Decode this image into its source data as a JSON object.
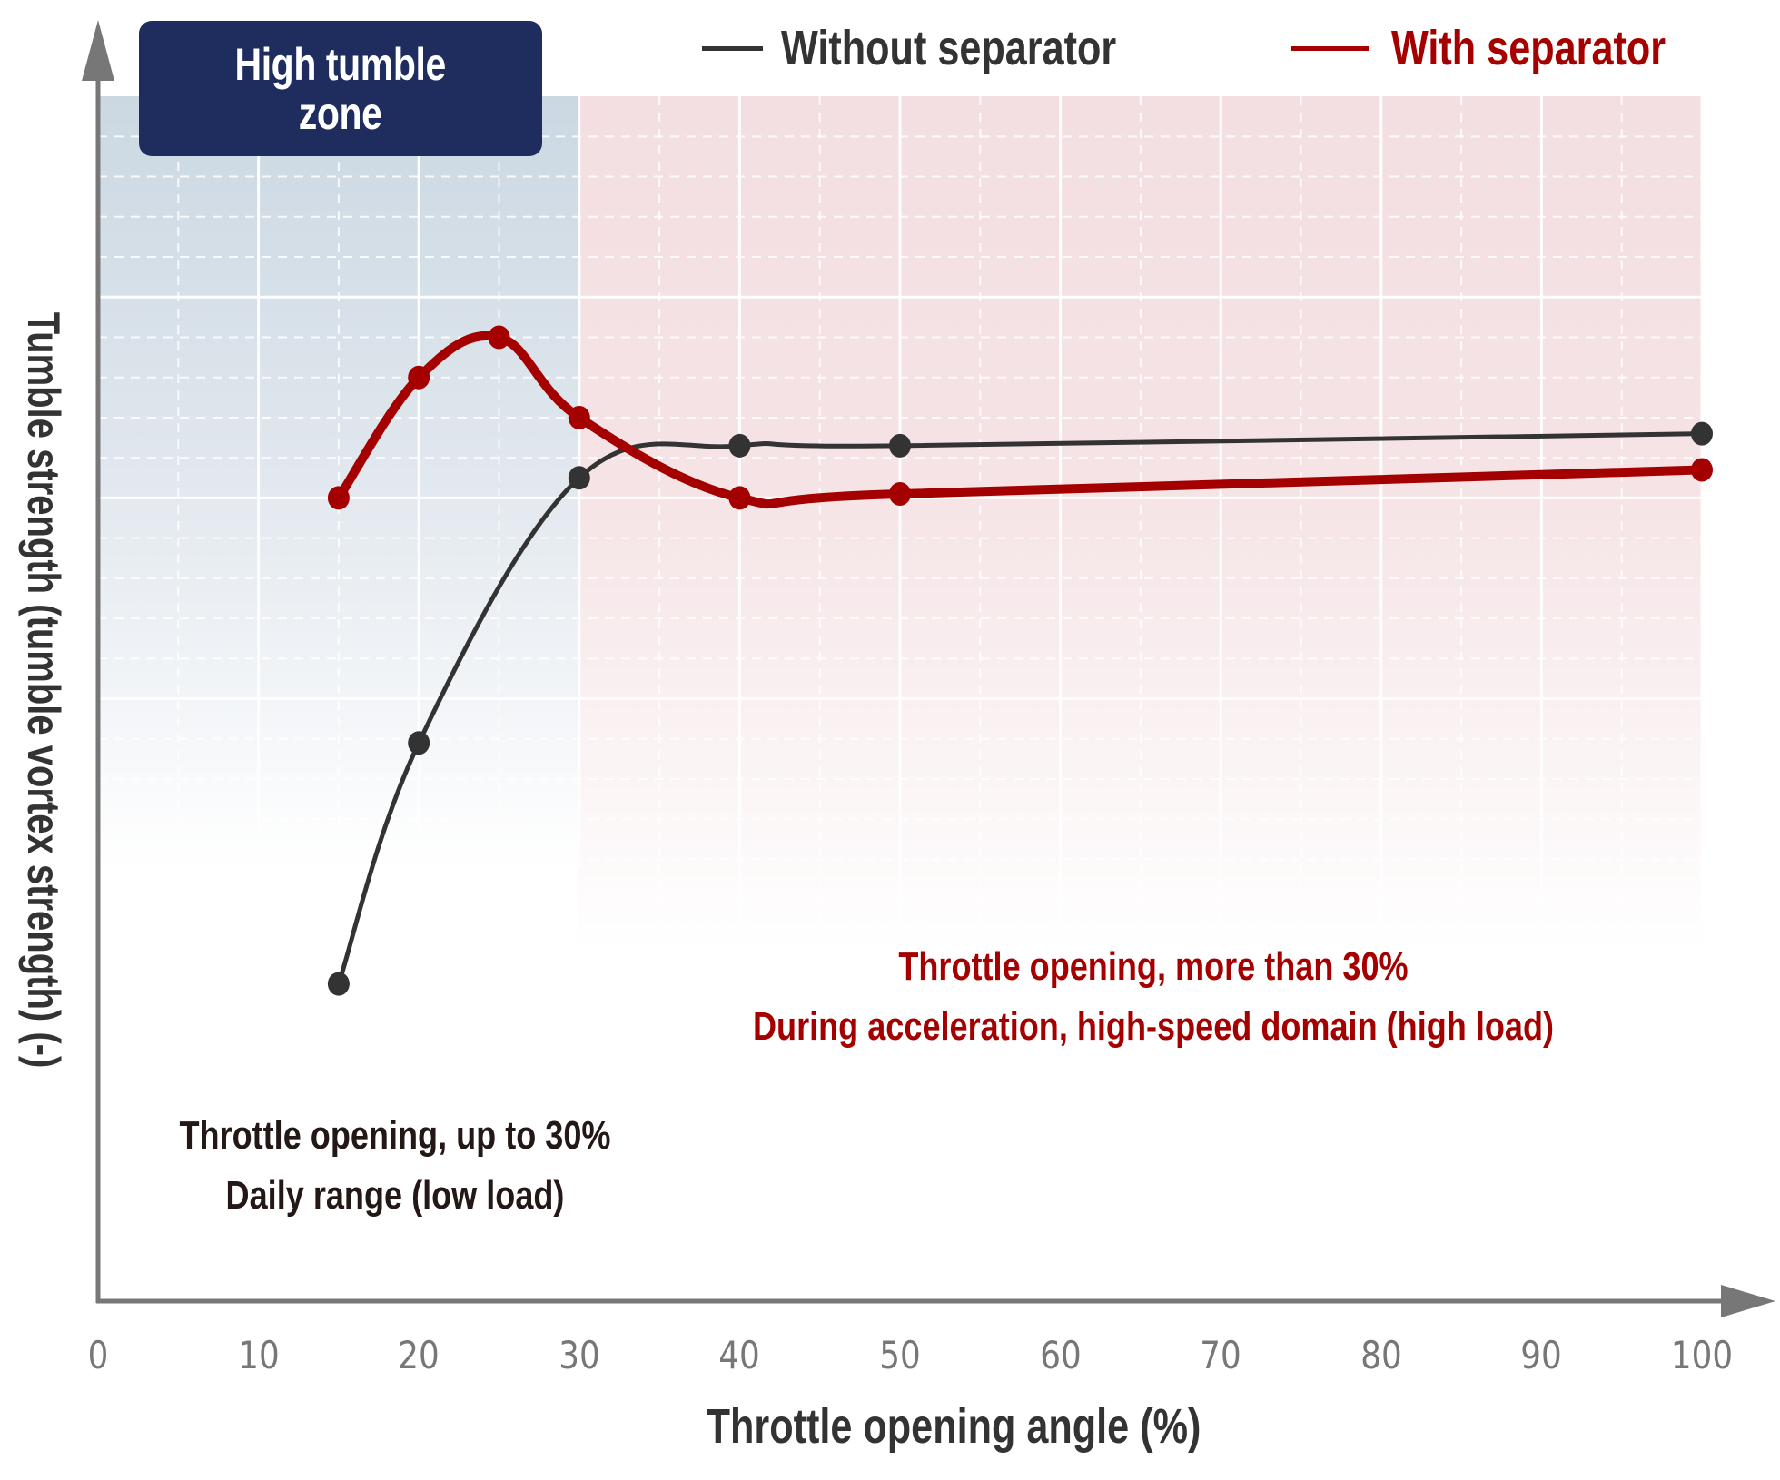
{
  "chart_data": {
    "type": "line",
    "title": "",
    "xlabel": "Throttle opening angle (%)",
    "ylabel": "Tumble strength (tumble vortex strength) (-)",
    "xlim": [
      0,
      100
    ],
    "ylim": [
      0,
      30
    ],
    "x_ticks": [
      0,
      10,
      20,
      30,
      40,
      50,
      60,
      70,
      80,
      90,
      100
    ],
    "y_ticks": [],
    "grid": true,
    "legend_position": "top-right",
    "series": [
      {
        "name": "Without separator",
        "color": "#333333",
        "x": [
          15,
          20,
          30,
          40,
          50,
          100
        ],
        "values": [
          7.9,
          13.9,
          20.5,
          21.3,
          21.3,
          21.6
        ]
      },
      {
        "name": "With separator",
        "color": "#a50000",
        "x": [
          15,
          20,
          25,
          30,
          40,
          50,
          100
        ],
        "values": [
          20.0,
          23.0,
          24.0,
          22.0,
          20.0,
          20.1,
          20.7
        ]
      }
    ],
    "regions": [
      {
        "label": "High tumble zone",
        "x_from": 0,
        "x_to": 30,
        "color": "#cdd9e2"
      },
      {
        "label": "Throttle opening, more than 30%",
        "x_from": 30,
        "x_to": 100,
        "color": "#f4e0e2"
      }
    ],
    "annotations": [
      "High tumble zone",
      "Throttle opening, up to 30% / Daily range (low load)",
      "Throttle opening, more than 30% / During acceleration, high-speed domain (high load)"
    ]
  },
  "zone_box": {
    "line1": "High tumble",
    "line2": "zone"
  },
  "legend": {
    "without": {
      "label": "Without separator",
      "color": "#333333"
    },
    "with": {
      "label": "With separator",
      "color": "#a50000"
    }
  },
  "annotations": {
    "low": {
      "line1": "Throttle opening, up to 30%",
      "line2": "Daily range (low load)",
      "color": "#231815"
    },
    "high": {
      "line1": "Throttle opening, more than 30%",
      "line2": "During acceleration, high-speed domain (high load)",
      "color": "#a50000"
    }
  },
  "axes": {
    "xlabel": "Throttle opening angle (%)",
    "ylabel": "Tumble strength (tumble vortex strength) (-)",
    "xticks": [
      "0",
      "10",
      "20",
      "30",
      "40",
      "50",
      "60",
      "70",
      "80",
      "90",
      "100"
    ]
  },
  "colors": {
    "axis": "#777777",
    "low_zone": "#cdd9e2",
    "high_zone": "#f4e0e2",
    "zone_box": "#1e2d5e"
  }
}
